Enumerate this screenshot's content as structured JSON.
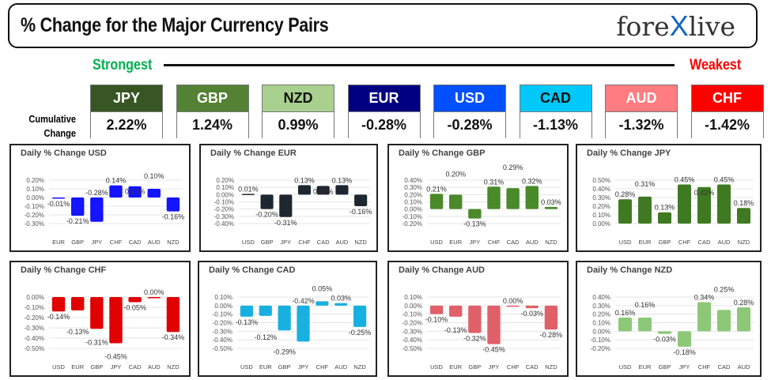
{
  "header": {
    "title": "% Change for the Major Currency Pairs",
    "logo": "forexlive"
  },
  "strength": {
    "strongest": "Strongest",
    "weakest": "Weakest",
    "cumulative_label_1": "Cumulative",
    "cumulative_label_2": "Change"
  },
  "currencies": [
    {
      "name": "JPY",
      "value": "2.22%",
      "bg": "#375623",
      "fg": "#ffffff"
    },
    {
      "name": "GBP",
      "value": "1.24%",
      "bg": "#548235",
      "fg": "#ffffff"
    },
    {
      "name": "NZD",
      "value": "0.99%",
      "bg": "#a9d08e",
      "fg": "#111111"
    },
    {
      "name": "EUR",
      "value": "-0.28%",
      "bg": "#000080",
      "fg": "#ffffff"
    },
    {
      "name": "USD",
      "value": "-0.28%",
      "bg": "#0050ff",
      "fg": "#ffffff"
    },
    {
      "name": "CAD",
      "value": "-1.13%",
      "bg": "#00c8f8",
      "fg": "#111111"
    },
    {
      "name": "AUD",
      "value": "-1.32%",
      "bg": "#ff7c80",
      "fg": "#ffffff"
    },
    {
      "name": "CHF",
      "value": "-1.42%",
      "bg": "#ff0000",
      "fg": "#ffffff"
    }
  ],
  "chart_data": [
    {
      "type": "bar",
      "title": "Daily % Change USD",
      "color": "#1414ff",
      "categories": [
        "EUR",
        "GBP",
        "JPY",
        "CHF",
        "CAD",
        "AUD",
        "NZD"
      ],
      "values": [
        -0.01,
        -0.21,
        -0.28,
        0.14,
        0.13,
        0.1,
        -0.16
      ],
      "ylim": [
        -0.3,
        0.2
      ]
    },
    {
      "type": "bar",
      "title": "Daily % Change EUR",
      "color": "#1e2630",
      "categories": [
        "USD",
        "GBP",
        "JPY",
        "CHF",
        "CAD",
        "AUD",
        "NZD"
      ],
      "values": [
        0.01,
        -0.2,
        -0.31,
        0.13,
        0.12,
        0.13,
        -0.16
      ],
      "ylim": [
        -0.4,
        0.2
      ]
    },
    {
      "type": "bar",
      "title": "Daily % Change GBP",
      "color": "#4a8a2a",
      "categories": [
        "USD",
        "EUR",
        "JPY",
        "CHF",
        "CAD",
        "AUD",
        "NZD"
      ],
      "values": [
        0.21,
        0.2,
        -0.13,
        0.31,
        0.29,
        0.32,
        0.03
      ],
      "ylim": [
        -0.2,
        0.4
      ]
    },
    {
      "type": "bar",
      "title": "Daily % Change JPY",
      "color": "#3f7a22",
      "categories": [
        "USD",
        "EUR",
        "GBP",
        "CHF",
        "CAD",
        "AUD",
        "NZD"
      ],
      "values": [
        0.28,
        0.31,
        0.13,
        0.45,
        0.42,
        0.45,
        0.18
      ],
      "ylim": [
        0.0,
        0.5
      ]
    },
    {
      "type": "bar",
      "title": "Daily % Change CHF",
      "color": "#e00000",
      "categories": [
        "USD",
        "EUR",
        "GBP",
        "JPY",
        "CAD",
        "AUD",
        "NZD"
      ],
      "values": [
        -0.14,
        -0.13,
        -0.31,
        -0.45,
        -0.05,
        0.0,
        -0.34
      ],
      "ylim": [
        -0.5,
        0.0
      ]
    },
    {
      "type": "bar",
      "title": "Daily % Change CAD",
      "color": "#18b0e0",
      "categories": [
        "USD",
        "EUR",
        "GBP",
        "JPY",
        "CHF",
        "AUD",
        "NZD"
      ],
      "values": [
        -0.13,
        -0.12,
        -0.29,
        -0.42,
        0.05,
        0.03,
        -0.25
      ],
      "ylim": [
        -0.5,
        0.1
      ]
    },
    {
      "type": "bar",
      "title": "Daily % Change AUD",
      "color": "#e0606a",
      "categories": [
        "USD",
        "EUR",
        "GBP",
        "JPY",
        "CHF",
        "CAD",
        "NZD"
      ],
      "values": [
        -0.1,
        -0.13,
        -0.32,
        -0.45,
        0.0,
        -0.03,
        -0.28
      ],
      "ylim": [
        -0.5,
        0.1
      ]
    },
    {
      "type": "bar",
      "title": "Daily % Change NZD",
      "color": "#8cc878",
      "categories": [
        "USD",
        "EUR",
        "GBP",
        "JPY",
        "CHF",
        "CAD",
        "AUD"
      ],
      "values": [
        0.16,
        0.16,
        -0.03,
        -0.18,
        0.34,
        0.25,
        0.28
      ],
      "ylim": [
        -0.2,
        0.4
      ]
    }
  ]
}
